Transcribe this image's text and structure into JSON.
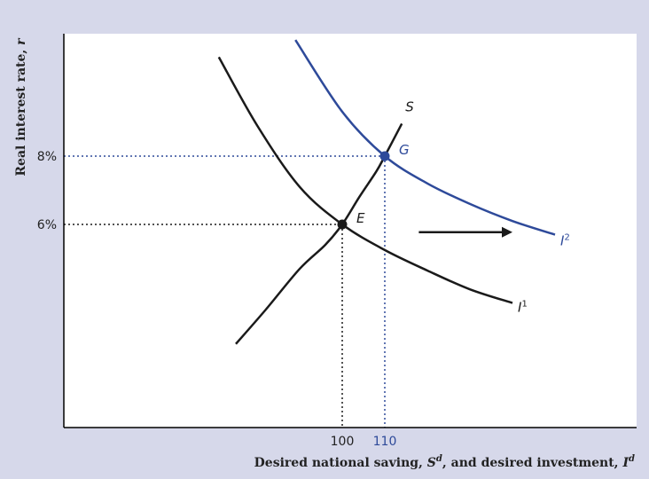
{
  "chart_data": {
    "type": "line",
    "title": "",
    "xlabel": {
      "main": "Desired national saving, ",
      "s": "S",
      "s_sup": "d",
      "mid": ", and desired investment, ",
      "i": "I",
      "i_sup": "d"
    },
    "ylabel": {
      "main": "Real interest rate, ",
      "var": "r"
    },
    "x_ticks": [
      {
        "value": 100,
        "label": "100",
        "color": "#222222"
      },
      {
        "value": 110,
        "label": "110",
        "color": "#2e4a9a"
      }
    ],
    "y_ticks": [
      {
        "value": 6,
        "label": "6%"
      },
      {
        "value": 8,
        "label": "8%"
      }
    ],
    "series": [
      {
        "name": "S",
        "color": "#1a1a1a",
        "x": [
          75,
          82,
          90,
          96,
          100,
          104,
          108,
          110,
          114
        ],
        "y": [
          2.5,
          3.5,
          4.7,
          5.4,
          6.0,
          6.8,
          7.55,
          8.0,
          8.95
        ]
      },
      {
        "name": "I",
        "name_sup": "1",
        "color": "#1a1a1a",
        "x": [
          71,
          80,
          90,
          100,
          110,
          120,
          130,
          140
        ],
        "y": [
          10.9,
          8.9,
          7.1,
          6.0,
          5.25,
          4.65,
          4.1,
          3.7
        ]
      },
      {
        "name": "I",
        "name_sup": "2",
        "color": "#2e4a9a",
        "x": [
          89,
          100,
          110,
          120,
          130,
          140,
          150
        ],
        "y": [
          11.4,
          9.3,
          8.0,
          7.2,
          6.6,
          6.1,
          5.7
        ]
      }
    ],
    "points": [
      {
        "label": "E",
        "x": 100,
        "y": 6.0,
        "color": "#1a1a1a"
      },
      {
        "label": "G",
        "x": 110,
        "y": 8.0,
        "color": "#2e4a9a"
      }
    ],
    "arrow": {
      "from": [
        118,
        5.8
      ],
      "to": [
        140,
        5.8
      ]
    },
    "colors": {
      "background": "#d6d8ea",
      "plot": "#ffffff",
      "axis": "#000000",
      "blue": "#2e4a9a"
    }
  }
}
